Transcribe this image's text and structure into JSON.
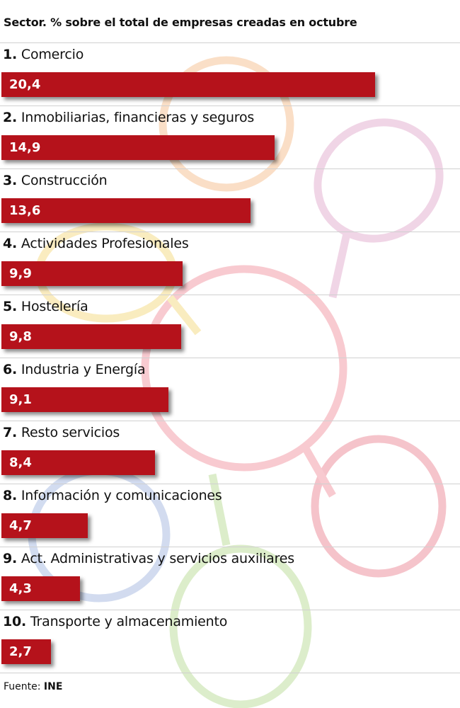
{
  "title": "Sector. % sobre el total de empresas creadas en octubre",
  "source": {
    "label": "Fuente:",
    "name": "INE"
  },
  "colors": {
    "bar": "#b5121b",
    "rule": "#d0d0d0"
  },
  "chart_data": {
    "type": "bar",
    "orientation": "horizontal",
    "title": "Sector. % sobre el total de empresas creadas en octubre",
    "categories": [
      {
        "rank": "1.",
        "name": "Comercio",
        "value": 20.4,
        "display": "20,4"
      },
      {
        "rank": "2.",
        "name": "Inmobiliarias, financieras y seguros",
        "value": 14.9,
        "display": "14,9"
      },
      {
        "rank": "3.",
        "name": "Construcción",
        "value": 13.6,
        "display": "13,6"
      },
      {
        "rank": "4.",
        "name": "Actividades Profesionales",
        "value": 9.9,
        "display": "9,9"
      },
      {
        "rank": "5.",
        "name": "Hostelería",
        "value": 9.8,
        "display": "9,8"
      },
      {
        "rank": "6.",
        "name": "Industria y Energía",
        "value": 9.1,
        "display": "9,1"
      },
      {
        "rank": "7.",
        "name": "Resto servicios",
        "value": 8.4,
        "display": "8,4"
      },
      {
        "rank": "8.",
        "name": "Información y comunicaciones",
        "value": 4.7,
        "display": "4,7"
      },
      {
        "rank": "9.",
        "name": "Act. Administrativas y servicios auxiliares",
        "value": 4.3,
        "display": "4,3"
      },
      {
        "rank": "10.",
        "name": "Transporte y almacenamiento",
        "value": 2.7,
        "display": "2,7"
      }
    ]
  }
}
